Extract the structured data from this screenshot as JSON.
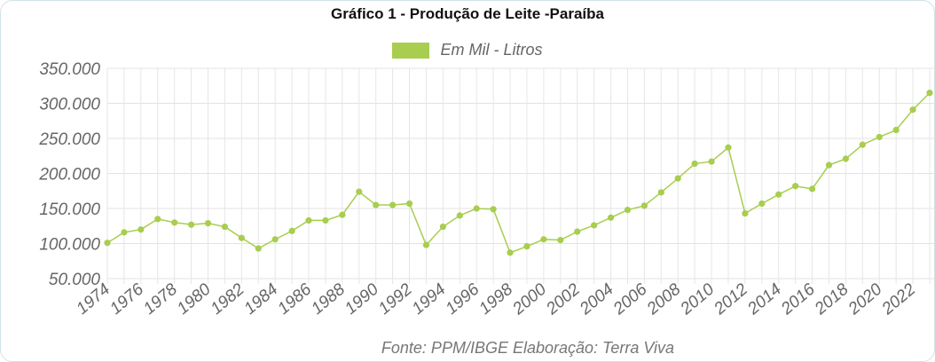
{
  "chart_data": {
    "type": "line",
    "title": "Gráfico 1 - Produção de Leite -Paraíba",
    "xlabel": "",
    "ylabel": "",
    "legend": {
      "placement": "top-center",
      "entries": [
        "Em Mil - Litros"
      ]
    },
    "source": "Fonte: PPM/IBGE Elaboração: Terra Viva",
    "ylim": [
      50000,
      350000
    ],
    "yticks": [
      "50.000",
      "100.000",
      "150.000",
      "200.000",
      "250.000",
      "300.000",
      "350.000"
    ],
    "ytick_values": [
      50000,
      100000,
      150000,
      200000,
      250000,
      300000,
      350000
    ],
    "xticks": [
      "1974",
      "1976",
      "1978",
      "1980",
      "1982",
      "1984",
      "1986",
      "1988",
      "1990",
      "1992",
      "1994",
      "1996",
      "1998",
      "2000",
      "2002",
      "2004",
      "2006",
      "2008",
      "2010",
      "2012",
      "2014",
      "2016",
      "2018",
      "2020",
      "2022"
    ],
    "grid": true,
    "x": [
      1974,
      1975,
      1976,
      1977,
      1978,
      1979,
      1980,
      1981,
      1982,
      1983,
      1984,
      1985,
      1986,
      1987,
      1988,
      1989,
      1990,
      1991,
      1992,
      1993,
      1994,
      1995,
      1996,
      1997,
      1998,
      1999,
      2000,
      2001,
      2002,
      2003,
      2004,
      2005,
      2006,
      2007,
      2008,
      2009,
      2010,
      2011,
      2012,
      2013,
      2014,
      2015,
      2016,
      2017,
      2018,
      2019,
      2020,
      2021,
      2022,
      2023
    ],
    "series": [
      {
        "name": "Em Mil - Litros",
        "color": "#a8cd4f",
        "values": [
          101000,
          116000,
          120000,
          135000,
          130000,
          127000,
          129000,
          124000,
          108000,
          93000,
          106000,
          118000,
          133000,
          133000,
          141000,
          174000,
          155000,
          155000,
          157000,
          98000,
          124000,
          140000,
          150000,
          149000,
          87000,
          96000,
          106000,
          105000,
          117000,
          126000,
          137000,
          148000,
          154000,
          173000,
          193000,
          214000,
          217000,
          237000,
          143000,
          157000,
          170000,
          182000,
          178000,
          212000,
          221000,
          241000,
          252000,
          262000,
          291000,
          315000
        ]
      }
    ]
  }
}
